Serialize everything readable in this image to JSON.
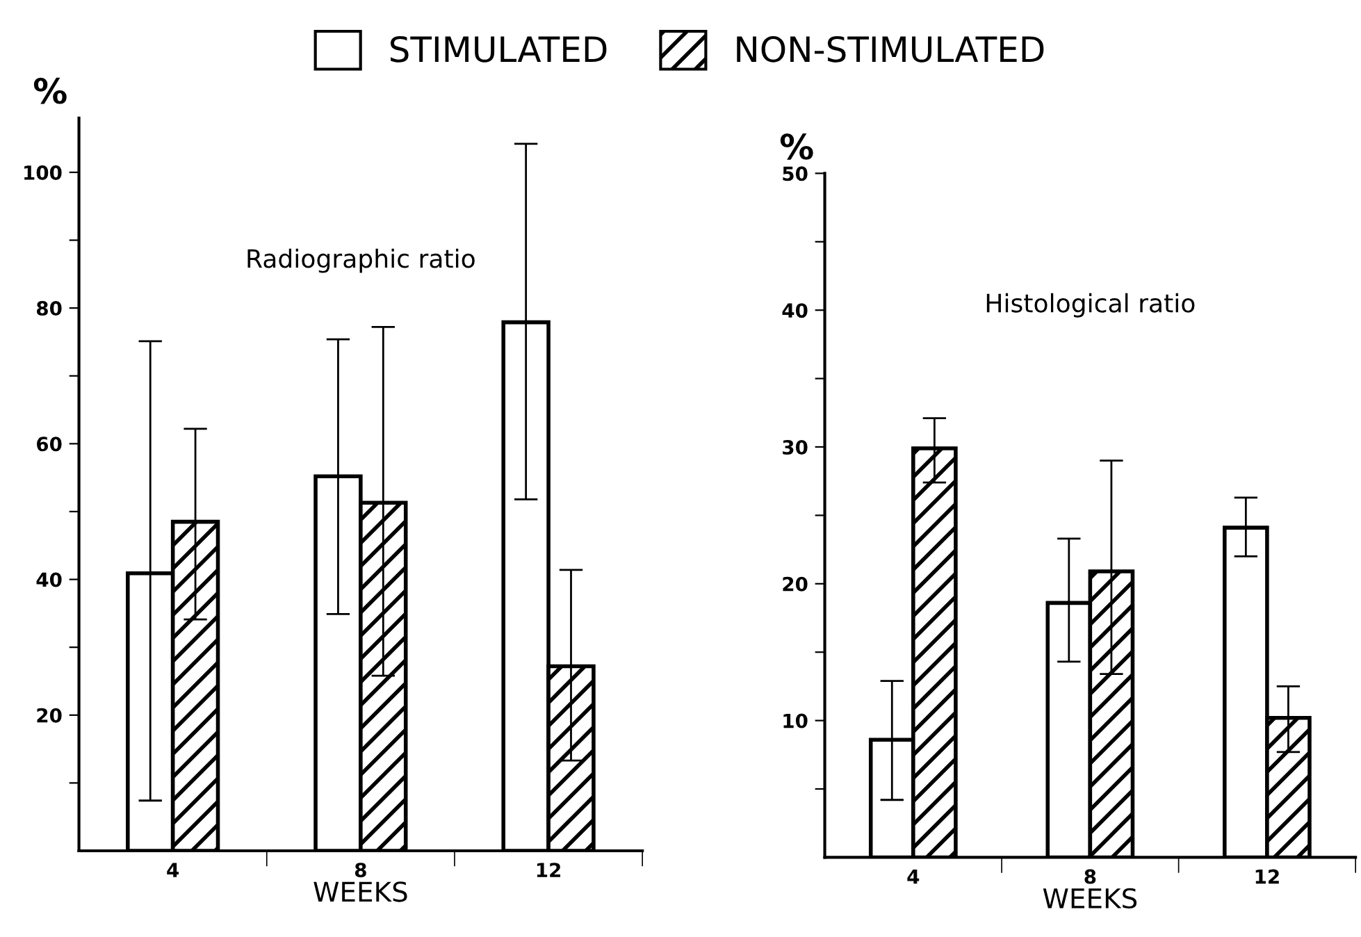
{
  "chart_data": [
    {
      "type": "bar",
      "title": "Radiographic ratio",
      "xlabel": "WEEKS",
      "ylabel": "%",
      "categories": [
        "4",
        "8",
        "12"
      ],
      "series": [
        {
          "name": "STIMULATED",
          "color": "#ffffff",
          "values": [
            40.9,
            55.2,
            77.9
          ],
          "errors": [
            [
              7.4,
              75.1
            ],
            [
              34.9,
              75.4
            ],
            [
              51.8,
              104.2
            ]
          ]
        },
        {
          "name": "NON-STIMULATED",
          "color": "#000000",
          "values": [
            48.5,
            51.3,
            27.2
          ],
          "errors": [
            [
              34.1,
              62.2
            ],
            [
              25.8,
              77.2
            ],
            [
              13.3,
              41.4
            ]
          ]
        }
      ],
      "ylim": [
        0,
        108
      ],
      "yticks": [
        {
          "value": 10,
          "label": null
        },
        20,
        {
          "value": 30,
          "label": null
        },
        40,
        {
          "value": 50,
          "label": null
        },
        60,
        {
          "value": 70,
          "label": null
        },
        80,
        {
          "value": 90,
          "label": null
        },
        100
      ],
      "grid": false,
      "legend": "top"
    },
    {
      "type": "bar",
      "title": "Histological ratio",
      "xlabel": "WEEKS",
      "ylabel": "%",
      "categories": [
        "4",
        "8",
        "12"
      ],
      "series": [
        {
          "color": "#ffffff",
          "values": [
            8.6,
            18.6,
            24.1
          ],
          "errors": [
            [
              4.2,
              12.9
            ],
            [
              14.3,
              23.3
            ],
            [
              22.0,
              26.3
            ]
          ]
        },
        {
          "color": "#000000",
          "values": [
            29.9,
            20.9,
            10.2
          ],
          "errors": [
            [
              27.4,
              32.1
            ],
            [
              13.4,
              29.0
            ],
            [
              7.7,
              12.5
            ]
          ]
        }
      ],
      "ylim": [
        0,
        50
      ],
      "yticks": [
        {
          "value": 5,
          "label": null
        },
        10,
        {
          "value": 15,
          "label": null
        },
        20,
        {
          "value": 25,
          "label": null
        },
        30,
        {
          "value": 35,
          "label": null
        },
        40,
        {
          "value": 45,
          "label": null
        },
        50
      ],
      "grid": false
    }
  ]
}
